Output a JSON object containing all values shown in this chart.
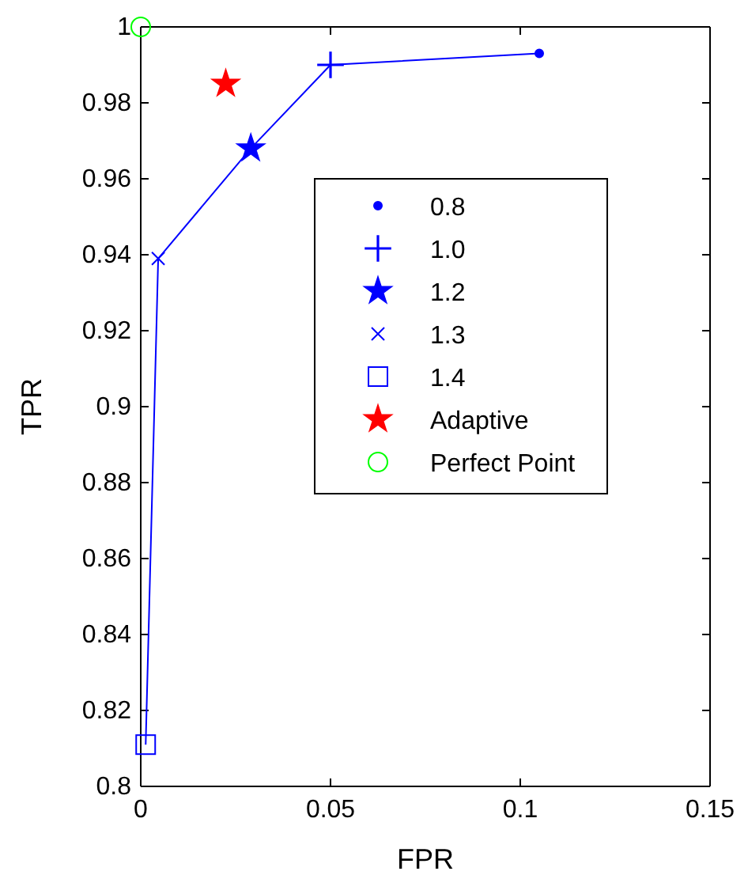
{
  "chart_data": {
    "type": "scatter",
    "xlabel": "FPR",
    "ylabel": "TPR",
    "xlim": [
      0,
      0.15
    ],
    "ylim": [
      0.8,
      1
    ],
    "xticks": [
      0,
      0.05,
      0.1,
      0.15
    ],
    "yticks": [
      0.8,
      0.82,
      0.84,
      0.86,
      0.88,
      0.9,
      0.92,
      0.94,
      0.96,
      0.98,
      {
        "value": 1,
        "label": "1"
      }
    ],
    "grid": false,
    "legend": "right",
    "series": [
      {
        "type": "line",
        "color": "#0000ff",
        "marker": "none",
        "line_style": "solid",
        "x": [
          0.0013,
          0.0046,
          0.029,
          0.05,
          0.105
        ],
        "values": [
          0.811,
          0.939,
          0.968,
          0.99,
          0.993
        ]
      },
      {
        "name": "0.8",
        "color": "#0000ff",
        "marker": "circle",
        "x": [
          0.105
        ],
        "values": [
          0.993
        ]
      },
      {
        "name": "1.0",
        "color": "#0000ff",
        "marker": "plus",
        "x": [
          0.05
        ],
        "values": [
          0.99
        ]
      },
      {
        "name": "1.2",
        "color": "#0000ff",
        "marker": "star",
        "x": [
          0.029
        ],
        "values": [
          0.968
        ]
      },
      {
        "name": "1.3",
        "color": "#0000ff",
        "marker": "cross",
        "x": [
          0.0046
        ],
        "values": [
          0.939
        ]
      },
      {
        "name": "1.4",
        "color": "#0000ff",
        "marker": "square",
        "x": [
          0.0013
        ],
        "values": [
          0.811
        ]
      },
      {
        "name": "Adaptive",
        "color": "#ff0000",
        "marker": "star",
        "x": [
          0.0224
        ],
        "values": [
          0.985
        ]
      },
      {
        "name": "Perfect Point",
        "color": "#00ff00",
        "marker": "circle",
        "x": [
          0
        ],
        "values": [
          1
        ]
      }
    ]
  }
}
